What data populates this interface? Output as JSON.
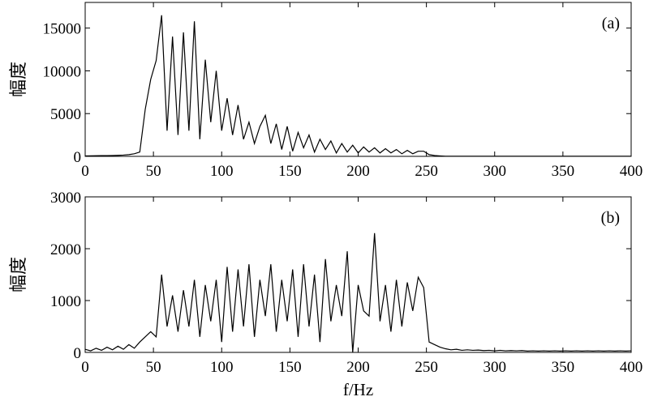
{
  "chart_data": [
    {
      "type": "line",
      "annotation": "(a)",
      "ylabel": "幅度",
      "color": "#000000",
      "x": [
        0,
        4,
        8,
        12,
        16,
        20,
        24,
        28,
        32,
        36,
        40,
        44,
        48,
        52,
        56,
        60,
        64,
        68,
        72,
        76,
        80,
        84,
        88,
        92,
        96,
        100,
        104,
        108,
        112,
        116,
        120,
        124,
        128,
        132,
        136,
        140,
        144,
        148,
        152,
        156,
        160,
        164,
        168,
        172,
        176,
        180,
        184,
        188,
        192,
        196,
        200,
        204,
        208,
        212,
        216,
        220,
        224,
        228,
        232,
        236,
        240,
        244,
        248,
        252,
        256,
        260,
        264,
        268,
        272,
        276,
        280,
        284,
        288,
        292,
        296,
        300,
        304,
        308,
        312,
        316,
        320,
        324,
        328,
        332,
        336,
        340,
        344,
        348,
        352,
        356,
        360,
        364,
        368,
        372,
        376,
        380,
        384,
        388,
        392,
        396,
        400
      ],
      "values": [
        50,
        60,
        70,
        80,
        90,
        100,
        120,
        150,
        200,
        300,
        500,
        5500,
        9000,
        11200,
        16500,
        3000,
        14000,
        2500,
        14500,
        3000,
        15800,
        2000,
        11300,
        4000,
        10000,
        3000,
        6800,
        2500,
        6000,
        2000,
        4000,
        1500,
        3500,
        4800,
        1500,
        3800,
        800,
        3500,
        600,
        2800,
        1000,
        2500,
        500,
        2000,
        800,
        1800,
        400,
        1500,
        500,
        1300,
        400,
        1100,
        500,
        1000,
        400,
        900,
        400,
        800,
        300,
        700,
        300,
        600,
        600,
        200,
        100,
        50,
        10,
        10,
        10,
        10,
        10,
        10,
        10,
        10,
        10,
        10,
        10,
        10,
        10,
        10,
        10,
        10,
        10,
        10,
        10,
        10,
        10,
        10,
        10,
        10,
        10,
        10,
        10,
        10,
        10,
        10,
        10,
        10,
        10,
        10,
        10
      ],
      "xlim": [
        0,
        400
      ],
      "xticks": [
        0,
        50,
        100,
        150,
        200,
        250,
        300,
        350,
        400
      ],
      "ylim": [
        0,
        18000
      ],
      "yticks": [
        0,
        5000,
        10000,
        15000
      ]
    },
    {
      "type": "line",
      "annotation": "(b)",
      "ylabel": "幅度",
      "xlabel": "f/Hz",
      "color": "#000000",
      "x": [
        0,
        4,
        8,
        12,
        16,
        20,
        24,
        28,
        32,
        36,
        40,
        44,
        48,
        52,
        56,
        60,
        64,
        68,
        72,
        76,
        80,
        84,
        88,
        92,
        96,
        100,
        104,
        108,
        112,
        116,
        120,
        124,
        128,
        132,
        136,
        140,
        144,
        148,
        152,
        156,
        160,
        164,
        168,
        172,
        176,
        180,
        184,
        188,
        192,
        196,
        200,
        204,
        208,
        212,
        216,
        220,
        224,
        228,
        232,
        236,
        240,
        244,
        248,
        252,
        256,
        260,
        264,
        268,
        272,
        276,
        280,
        284,
        288,
        292,
        296,
        300,
        304,
        308,
        312,
        316,
        320,
        324,
        328,
        332,
        336,
        340,
        344,
        348,
        352,
        356,
        360,
        364,
        368,
        372,
        376,
        380,
        384,
        388,
        392,
        396,
        400
      ],
      "values": [
        60,
        30,
        80,
        40,
        100,
        50,
        120,
        60,
        150,
        80,
        200,
        300,
        400,
        300,
        1500,
        500,
        1100,
        400,
        1200,
        500,
        1400,
        300,
        1300,
        600,
        1400,
        200,
        1650,
        400,
        1600,
        500,
        1700,
        300,
        1400,
        700,
        1700,
        400,
        1400,
        600,
        1600,
        300,
        1700,
        500,
        1500,
        200,
        1800,
        600,
        1300,
        700,
        1950,
        0,
        1300,
        800,
        700,
        2300,
        600,
        1300,
        400,
        1400,
        500,
        1350,
        800,
        1450,
        1250,
        200,
        150,
        100,
        70,
        50,
        60,
        40,
        50,
        40,
        45,
        35,
        40,
        30,
        40,
        30,
        35,
        30,
        35,
        25,
        30,
        25,
        30,
        25,
        30,
        25,
        30,
        25,
        30,
        25,
        30,
        25,
        30,
        25,
        30,
        25,
        30,
        25,
        30
      ],
      "xlim": [
        0,
        400
      ],
      "xticks": [
        0,
        50,
        100,
        150,
        200,
        250,
        300,
        350,
        400
      ],
      "ylim": [
        0,
        3000
      ],
      "yticks": [
        0,
        1000,
        2000,
        3000
      ]
    }
  ]
}
